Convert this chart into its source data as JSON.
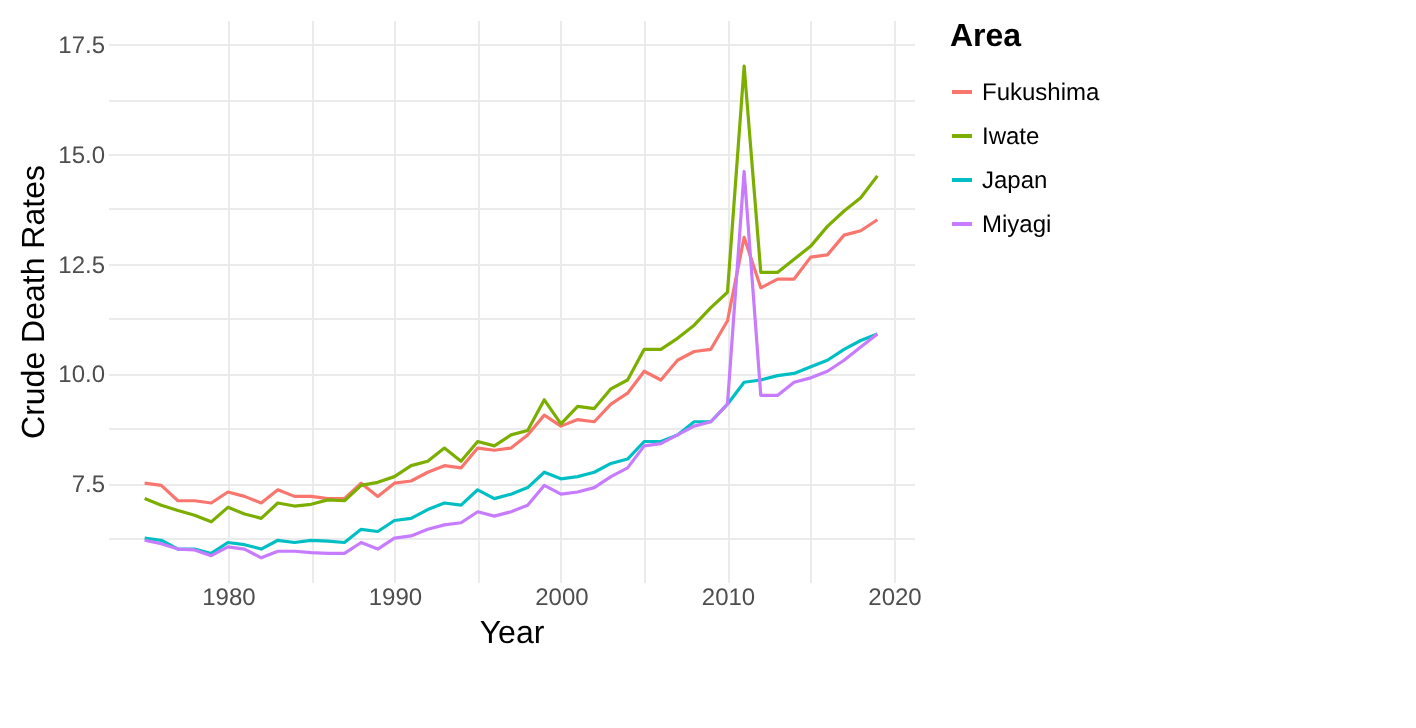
{
  "chart_data": {
    "type": "line",
    "xlabel": "Year",
    "ylabel": "Crude Death Rates",
    "legend_title": "Area",
    "legend": "right",
    "grid": true,
    "line_style": "solid",
    "marker": "none",
    "x": [
      1975,
      1976,
      1977,
      1978,
      1979,
      1980,
      1981,
      1982,
      1983,
      1984,
      1985,
      1986,
      1987,
      1988,
      1989,
      1990,
      1991,
      1992,
      1993,
      1994,
      1995,
      1996,
      1997,
      1998,
      1999,
      2000,
      2001,
      2002,
      2003,
      2004,
      2005,
      2006,
      2007,
      2008,
      2009,
      2010,
      2011,
      2012,
      2013,
      2014,
      2015,
      2016,
      2017,
      2018,
      2019
    ],
    "xlim": [
      1972.8,
      2021.2
    ],
    "xticks": [
      1980,
      {
        "value": 1985,
        "label": null
      },
      1990,
      {
        "value": 1995,
        "label": null
      },
      2000,
      {
        "value": 2005,
        "label": null
      },
      2010,
      {
        "value": 2015,
        "label": null
      },
      2020
    ],
    "ylim": [
      5.25,
      18.05
    ],
    "yticks": [
      {
        "value": 6.25,
        "label": null
      },
      {
        "value": 7.5,
        "label": "7.5"
      },
      {
        "value": 8.75,
        "label": null
      },
      {
        "value": 10,
        "label": "10.0"
      },
      {
        "value": 11.25,
        "label": null
      },
      {
        "value": 12.5,
        "label": "12.5"
      },
      {
        "value": 13.75,
        "label": null
      },
      {
        "value": 15,
        "label": "15.0"
      },
      {
        "value": 16.25,
        "label": null
      },
      {
        "value": 17.5,
        "label": "17.5"
      }
    ],
    "series": [
      {
        "name": "Fukushima",
        "color": "#f8766d",
        "values": [
          7.5,
          7.45,
          7.1,
          7.1,
          7.05,
          7.3,
          7.2,
          7.05,
          7.35,
          7.2,
          7.2,
          7.15,
          7.15,
          7.5,
          7.2,
          7.5,
          7.55,
          7.75,
          7.9,
          7.85,
          8.3,
          8.25,
          8.3,
          8.6,
          9.05,
          8.8,
          8.95,
          8.9,
          9.3,
          9.55,
          10.05,
          9.85,
          10.3,
          10.5,
          10.55,
          11.2,
          13.1,
          11.95,
          12.15,
          12.15,
          12.65,
          12.7,
          13.15,
          13.25,
          13.5
        ]
      },
      {
        "name": "Iwate",
        "color": "#7cae00",
        "values": [
          7.15,
          7.0,
          6.88,
          6.77,
          6.62,
          6.95,
          6.8,
          6.7,
          7.05,
          6.98,
          7.02,
          7.12,
          7.1,
          7.45,
          7.52,
          7.65,
          7.9,
          8.0,
          8.3,
          8.0,
          8.45,
          8.35,
          8.6,
          8.7,
          9.4,
          8.85,
          9.25,
          9.2,
          9.65,
          9.85,
          10.55,
          10.55,
          10.8,
          11.1,
          11.5,
          11.85,
          17.0,
          12.3,
          12.3,
          12.6,
          12.9,
          13.35,
          13.7,
          14.0,
          14.5
        ]
      },
      {
        "name": "Japan",
        "color": "#00bfc4",
        "values": [
          6.25,
          6.2,
          6.0,
          6.0,
          5.9,
          6.15,
          6.1,
          6.0,
          6.2,
          6.15,
          6.2,
          6.18,
          6.15,
          6.45,
          6.4,
          6.65,
          6.7,
          6.9,
          7.05,
          7.0,
          7.35,
          7.15,
          7.25,
          7.4,
          7.75,
          7.6,
          7.65,
          7.75,
          7.95,
          8.05,
          8.45,
          8.45,
          8.6,
          8.9,
          8.9,
          9.3,
          9.8,
          9.85,
          9.95,
          10.0,
          10.15,
          10.3,
          10.55,
          10.75,
          10.9
        ]
      },
      {
        "name": "Miyagi",
        "color": "#c77cff",
        "values": [
          6.2,
          6.12,
          6.0,
          5.98,
          5.85,
          6.05,
          6.0,
          5.8,
          5.95,
          5.95,
          5.92,
          5.9,
          5.9,
          6.15,
          6.0,
          6.25,
          6.3,
          6.45,
          6.55,
          6.6,
          6.85,
          6.75,
          6.85,
          7.0,
          7.45,
          7.25,
          7.3,
          7.4,
          7.65,
          7.85,
          8.35,
          8.4,
          8.6,
          8.8,
          8.9,
          9.3,
          14.6,
          9.5,
          9.5,
          9.8,
          9.9,
          10.05,
          10.3,
          10.6,
          10.9
        ]
      }
    ]
  }
}
